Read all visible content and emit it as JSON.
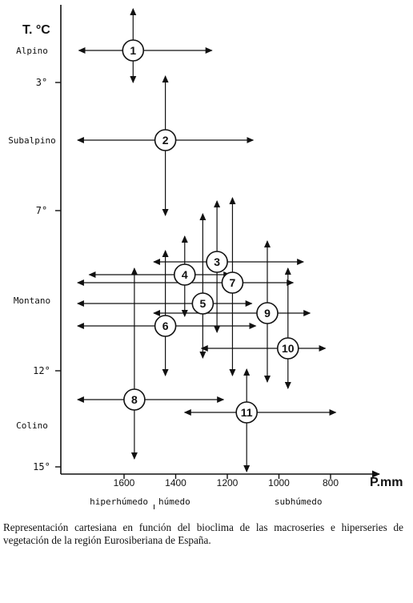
{
  "chart_data": {
    "type": "scatter",
    "title": "",
    "ylabel": "T. °C",
    "xlabel": "P.mm",
    "x_ticks": [
      1600,
      1400,
      1200,
      1000,
      800
    ],
    "x_tick_labels": [
      "1600",
      "1400",
      "1200",
      "1000",
      "800"
    ],
    "y_ticks": [
      3,
      7,
      12,
      15
    ],
    "y_tick_labels": [
      "3°",
      "7°",
      "12°",
      "15°"
    ],
    "y_zones": [
      {
        "label": "Alpino",
        "y": 2.0
      },
      {
        "label": "Subalpino",
        "y": 4.8
      },
      {
        "label": "Montano",
        "y": 9.8
      },
      {
        "label": "Colino",
        "y": 13.7
      }
    ],
    "x_zones": [
      {
        "label": "hiperhúmedo",
        "x": 1620
      },
      {
        "label": "húmedo",
        "x": 1405
      },
      {
        "label": "subhúmedo",
        "x": 925
      }
    ],
    "xlim": [
      1770,
      730
    ],
    "ylim": [
      -1.4,
      15.3
    ],
    "x_reversed": true,
    "y_inverted": true,
    "points": [
      {
        "label": "1",
        "x": 1565,
        "y": 2.0,
        "x_range": [
          1775,
          1260
        ],
        "y_range": [
          0.7,
          3.0
        ]
      },
      {
        "label": "2",
        "x": 1440,
        "y": 4.8,
        "x_range": [
          1780,
          1100
        ],
        "y_range": [
          2.8,
          7.15
        ]
      },
      {
        "label": "3",
        "x": 1240,
        "y": 8.6,
        "x_range": [
          1485,
          905
        ],
        "y_range": [
          6.7,
          10.8
        ]
      },
      {
        "label": "4",
        "x": 1365,
        "y": 9.0,
        "x_range": [
          1735,
          1190
        ],
        "y_range": [
          7.8,
          10.3
        ]
      },
      {
        "label": "5",
        "x": 1295,
        "y": 9.9,
        "x_range": [
          1780,
          1105
        ],
        "y_range": [
          7.1,
          11.6
        ]
      },
      {
        "label": "6",
        "x": 1440,
        "y": 10.6,
        "x_range": [
          1780,
          1090
        ],
        "y_range": [
          8.25,
          12.15
        ]
      },
      {
        "label": "7",
        "x": 1180,
        "y": 9.25,
        "x_range": [
          1780,
          945
        ],
        "y_range": [
          6.6,
          12.15
        ]
      },
      {
        "label": "8",
        "x": 1560,
        "y": 12.9,
        "x_range": [
          1780,
          1215
        ],
        "y_range": [
          8.8,
          14.75
        ]
      },
      {
        "label": "9",
        "x": 1045,
        "y": 10.2,
        "x_range": [
          1485,
          880
        ],
        "y_range": [
          7.95,
          12.35
        ]
      },
      {
        "label": "10",
        "x": 965,
        "y": 11.3,
        "x_range": [
          1300,
          820
        ],
        "y_range": [
          8.8,
          12.55
        ]
      },
      {
        "label": "11",
        "x": 1125,
        "y": 13.3,
        "x_range": [
          1365,
          780
        ],
        "y_range": [
          11.95,
          15.15
        ]
      }
    ]
  },
  "caption": "Representación cartesiana en función del bioclima de las macroseries e hiperseries de vegetación de la región Eurosiberiana de España."
}
